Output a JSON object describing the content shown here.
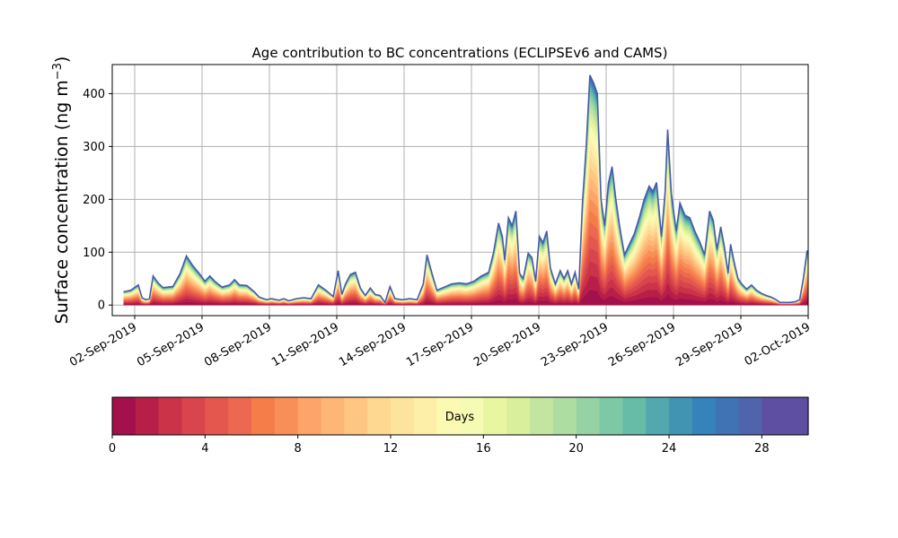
{
  "chart_data": {
    "type": "area",
    "title": "Age contribution to BC concentrations (ECLIPSEv6 and CAMS)",
    "ylabel_main": "Surface concentration (ng m",
    "ylabel_sup": "−3",
    "ylabel_close": ")",
    "xlabel": "",
    "x_start": "01-Sep-2019",
    "x_end": "02-Oct-2019",
    "ylim": [
      -20,
      455
    ],
    "y_ticks": [
      0,
      100,
      200,
      300,
      400
    ],
    "x_tick_labels": [
      "02-Sep-2019",
      "05-Sep-2019",
      "08-Sep-2019",
      "11-Sep-2019",
      "14-Sep-2019",
      "17-Sep-2019",
      "20-Sep-2019",
      "23-Sep-2019",
      "26-Sep-2019",
      "29-Sep-2019",
      "02-Oct-2019"
    ],
    "grid": true,
    "series_start": "01-Sep-2019 12:00",
    "series_end": "02-Oct-2019 12:00",
    "total_profile": [
      [
        0.0,
        25
      ],
      [
        0.3,
        28
      ],
      [
        0.6,
        38
      ],
      [
        0.75,
        14
      ],
      [
        0.9,
        10
      ],
      [
        1.05,
        12
      ],
      [
        1.2,
        55
      ],
      [
        1.4,
        42
      ],
      [
        1.6,
        33
      ],
      [
        2.0,
        35
      ],
      [
        2.3,
        60
      ],
      [
        2.55,
        93
      ],
      [
        2.8,
        75
      ],
      [
        3.1,
        58
      ],
      [
        3.3,
        45
      ],
      [
        3.5,
        55
      ],
      [
        3.7,
        45
      ],
      [
        4.0,
        34
      ],
      [
        4.3,
        38
      ],
      [
        4.5,
        48
      ],
      [
        4.7,
        38
      ],
      [
        5.0,
        37
      ],
      [
        5.3,
        25
      ],
      [
        5.5,
        15
      ],
      [
        5.8,
        10
      ],
      [
        6.0,
        12
      ],
      [
        6.3,
        9
      ],
      [
        6.5,
        12
      ],
      [
        6.7,
        8
      ],
      [
        7.0,
        12
      ],
      [
        7.3,
        14
      ],
      [
        7.6,
        12
      ],
      [
        7.9,
        38
      ],
      [
        8.2,
        28
      ],
      [
        8.5,
        16
      ],
      [
        8.7,
        65
      ],
      [
        8.85,
        20
      ],
      [
        9.0,
        40
      ],
      [
        9.2,
        58
      ],
      [
        9.4,
        62
      ],
      [
        9.6,
        32
      ],
      [
        9.8,
        18
      ],
      [
        10.0,
        32
      ],
      [
        10.2,
        20
      ],
      [
        10.4,
        18
      ],
      [
        10.6,
        5
      ],
      [
        10.8,
        35
      ],
      [
        11.0,
        12
      ],
      [
        11.3,
        10
      ],
      [
        11.6,
        12
      ],
      [
        11.9,
        10
      ],
      [
        12.15,
        40
      ],
      [
        12.3,
        95
      ],
      [
        12.5,
        60
      ],
      [
        12.7,
        28
      ],
      [
        13.0,
        34
      ],
      [
        13.3,
        40
      ],
      [
        13.6,
        42
      ],
      [
        13.9,
        40
      ],
      [
        14.2,
        45
      ],
      [
        14.5,
        55
      ],
      [
        14.8,
        62
      ],
      [
        15.0,
        100
      ],
      [
        15.2,
        155
      ],
      [
        15.35,
        130
      ],
      [
        15.45,
        85
      ],
      [
        15.6,
        165
      ],
      [
        15.75,
        150
      ],
      [
        15.9,
        178
      ],
      [
        16.05,
        60
      ],
      [
        16.2,
        50
      ],
      [
        16.4,
        98
      ],
      [
        16.55,
        90
      ],
      [
        16.7,
        45
      ],
      [
        16.85,
        130
      ],
      [
        17.0,
        118
      ],
      [
        17.15,
        140
      ],
      [
        17.3,
        70
      ],
      [
        17.5,
        40
      ],
      [
        17.7,
        65
      ],
      [
        17.85,
        50
      ],
      [
        18.0,
        65
      ],
      [
        18.15,
        40
      ],
      [
        18.3,
        62
      ],
      [
        18.45,
        30
      ],
      [
        18.6,
        195
      ],
      [
        18.75,
        300
      ],
      [
        18.9,
        435
      ],
      [
        19.05,
        420
      ],
      [
        19.2,
        400
      ],
      [
        19.35,
        200
      ],
      [
        19.5,
        150
      ],
      [
        19.65,
        230
      ],
      [
        19.8,
        262
      ],
      [
        19.95,
        200
      ],
      [
        20.1,
        150
      ],
      [
        20.3,
        95
      ],
      [
        20.5,
        115
      ],
      [
        20.7,
        135
      ],
      [
        20.9,
        165
      ],
      [
        21.1,
        200
      ],
      [
        21.3,
        225
      ],
      [
        21.45,
        215
      ],
      [
        21.6,
        232
      ],
      [
        21.8,
        130
      ],
      [
        21.95,
        215
      ],
      [
        22.05,
        332
      ],
      [
        22.2,
        210
      ],
      [
        22.4,
        140
      ],
      [
        22.55,
        193
      ],
      [
        22.75,
        170
      ],
      [
        22.95,
        165
      ],
      [
        23.15,
        140
      ],
      [
        23.35,
        120
      ],
      [
        23.55,
        95
      ],
      [
        23.75,
        178
      ],
      [
        23.9,
        160
      ],
      [
        24.05,
        105
      ],
      [
        24.2,
        148
      ],
      [
        24.35,
        110
      ],
      [
        24.5,
        60
      ],
      [
        24.6,
        115
      ],
      [
        24.75,
        80
      ],
      [
        24.9,
        50
      ],
      [
        25.05,
        40
      ],
      [
        25.25,
        30
      ],
      [
        25.45,
        38
      ],
      [
        25.65,
        28
      ],
      [
        25.85,
        22
      ],
      [
        26.05,
        18
      ],
      [
        26.25,
        15
      ],
      [
        26.45,
        10
      ],
      [
        26.6,
        5
      ],
      [
        26.8,
        5
      ],
      [
        27.0,
        5
      ],
      [
        27.2,
        6
      ],
      [
        27.4,
        10
      ],
      [
        27.55,
        50
      ],
      [
        27.7,
        103
      ],
      [
        27.85,
        85
      ],
      [
        28.0,
        110
      ],
      [
        28.1,
        92
      ],
      [
        28.2,
        95
      ]
    ],
    "colorbar": {
      "label": "Days",
      "min": 0,
      "max": 30,
      "tick_values": [
        0,
        4,
        8,
        12,
        16,
        20,
        24,
        28
      ],
      "tick_labels": [
        "0",
        "4",
        "8",
        "12",
        "16",
        "20",
        "24",
        "28"
      ],
      "colors": [
        "#a2114b",
        "#b81f48",
        "#cb3349",
        "#d9454c",
        "#e4574e",
        "#ed6850",
        "#f57d4a",
        "#f98f58",
        "#fca46a",
        "#fdb676",
        "#fec682",
        "#fed790",
        "#fde49c",
        "#feefa8",
        "#fcf9b3",
        "#f5fbb2",
        "#e9f6a1",
        "#d9ef9b",
        "#c4e59f",
        "#aedda2",
        "#96d3a4",
        "#7dc8a5",
        "#66bca7",
        "#52a8ae",
        "#4195b3",
        "#3682ba",
        "#4073b4",
        "#5064ad",
        "#5e4fa2",
        "#5e4fa2"
      ]
    }
  }
}
